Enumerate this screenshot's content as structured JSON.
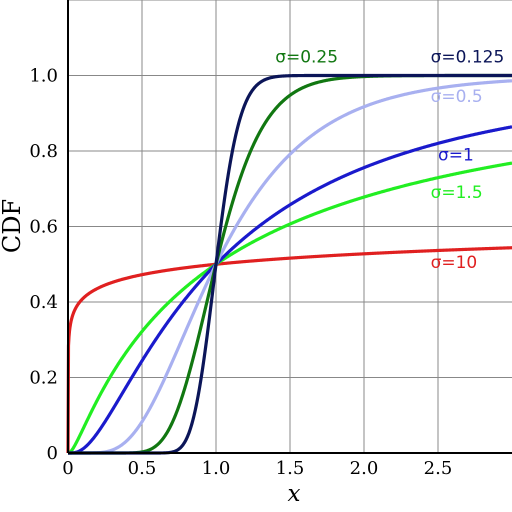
{
  "chart_data": {
    "type": "line",
    "xlabel": "x",
    "ylabel": "CDF",
    "xlim": [
      0,
      3
    ],
    "ylim": [
      0,
      1.2
    ],
    "x_ticks": [
      0,
      0.5,
      1.0,
      1.5,
      2.0,
      2.5
    ],
    "x_tick_labels": [
      "0",
      "0.5",
      "1.0",
      "1.5",
      "2.0",
      "2.5"
    ],
    "y_ticks": [
      0,
      0.2,
      0.4,
      0.6,
      0.8,
      1.0
    ],
    "y_tick_labels": [
      "0",
      "0.2",
      "0.4",
      "0.6",
      "0.8",
      "1.0"
    ],
    "grid": true,
    "legend": "labels placed next to curves",
    "series": [
      {
        "name": "σ=10",
        "sigma": 10,
        "color": "#e02020",
        "label_at": [
          2.45,
          0.49
        ]
      },
      {
        "name": "σ=1.5",
        "sigma": 1.5,
        "color": "#22ee22",
        "label_at": [
          2.45,
          0.675
        ]
      },
      {
        "name": "σ=1",
        "sigma": 1,
        "color": "#1a1acc",
        "label_at": [
          2.5,
          0.775
        ]
      },
      {
        "name": "σ=0.5",
        "sigma": 0.5,
        "color": "#a8b0f0",
        "label_at": [
          2.45,
          0.93
        ]
      },
      {
        "name": "σ=0.25",
        "sigma": 0.25,
        "color": "#117711",
        "label_at": [
          1.4,
          1.035
        ]
      },
      {
        "name": "σ=0.125",
        "sigma": 0.125,
        "color": "#0b1558",
        "label_at": [
          2.45,
          1.035
        ]
      }
    ]
  }
}
